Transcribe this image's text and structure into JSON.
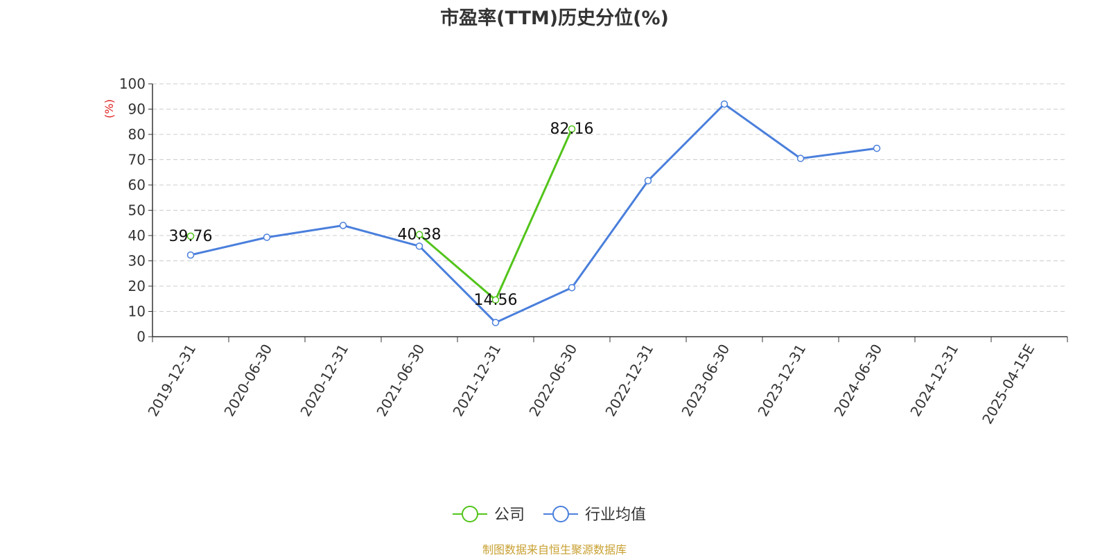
{
  "chart_data": {
    "type": "line",
    "title": "市盈率(TTM)历史分位(%)",
    "ylabel": "(%)",
    "ylim": [
      0,
      100
    ],
    "yticks": [
      0,
      10,
      20,
      30,
      40,
      50,
      60,
      70,
      80,
      90,
      100
    ],
    "categories": [
      "2019-12-31",
      "2020-06-30",
      "2020-12-31",
      "2021-06-30",
      "2021-12-31",
      "2022-06-30",
      "2022-12-31",
      "2023-06-30",
      "2023-12-31",
      "2024-06-30",
      "2024-12-31",
      "2025-04-15E"
    ],
    "grid": true,
    "legend_position": "bottom",
    "series": [
      {
        "name": "公司",
        "color": "#52c41a",
        "values": [
          39.76,
          null,
          null,
          40.38,
          14.56,
          82.16,
          null,
          null,
          null,
          null,
          null,
          null
        ],
        "labels": [
          "39.76",
          null,
          null,
          "40.38",
          "14.56",
          "82.16",
          null,
          null,
          null,
          null,
          null,
          null
        ]
      },
      {
        "name": "行业均值",
        "color": "#4a7fdc",
        "values": [
          32.3,
          39.3,
          44.0,
          35.8,
          5.6,
          19.4,
          61.7,
          92.0,
          70.5,
          74.5,
          null,
          null
        ],
        "labels": []
      }
    ]
  },
  "source": "制图数据来自恒生聚源数据库"
}
